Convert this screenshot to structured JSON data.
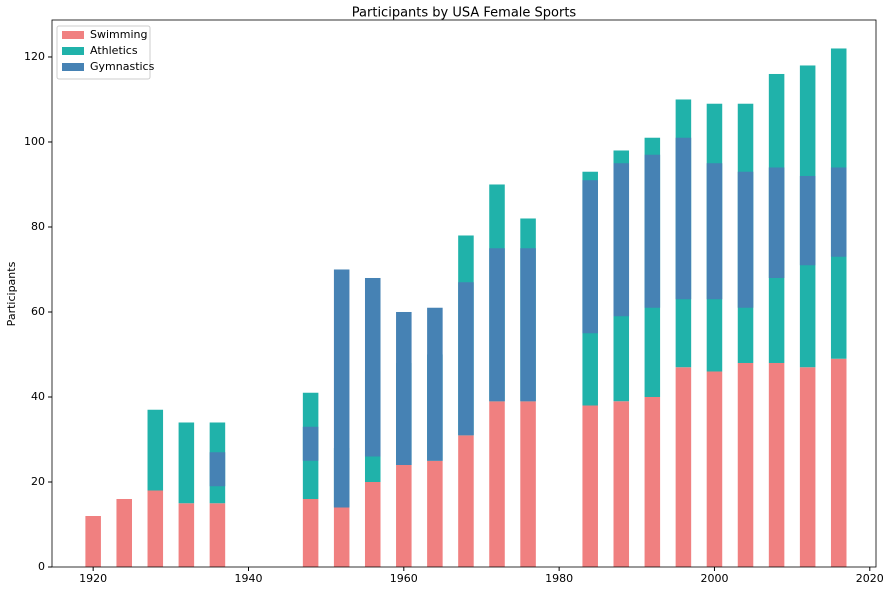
{
  "chart_data": {
    "type": "bar",
    "title": "Participants by USA Female Sports",
    "y_label": "Participants",
    "x": [
      1920,
      1924,
      1928,
      1932,
      1936,
      1948,
      1952,
      1956,
      1960,
      1964,
      1968,
      1972,
      1976,
      1984,
      1988,
      1992,
      1996,
      2000,
      2004,
      2008,
      2012,
      2016
    ],
    "series": [
      {
        "name": "Swimming",
        "color": "#f08080",
        "values": [
          12,
          16,
          18,
          15,
          15,
          16,
          14,
          20,
          24,
          25,
          31,
          39,
          39,
          38,
          39,
          40,
          47,
          46,
          48,
          48,
          47,
          49
        ]
      },
      {
        "name": "Athletics",
        "color": "#20b2aa",
        "stack_on": 0,
        "values": [
          null,
          null,
          19,
          19,
          19,
          25,
          14,
          26,
          24,
          25,
          47,
          51,
          43,
          55,
          59,
          61,
          63,
          63,
          61,
          68,
          71,
          73
        ]
      },
      {
        "name": "Gymnastics",
        "color": "#4682b4",
        "values": [
          null,
          null,
          null,
          null,
          8,
          8,
          56,
          42,
          36,
          36,
          36,
          36,
          36,
          36,
          36,
          36,
          38,
          32,
          32,
          26,
          21,
          21
        ],
        "bottom": [
          null,
          null,
          null,
          null,
          19,
          25,
          14,
          26,
          24,
          25,
          31,
          39,
          39,
          55,
          59,
          61,
          63,
          63,
          61,
          68,
          71,
          73
        ]
      }
    ],
    "bar_width": 2,
    "xlim": [
      1914.7,
      2020.8
    ],
    "xticks": [
      1920,
      1940,
      1960,
      1980,
      2000,
      2020
    ],
    "ylim": [
      0,
      128.7
    ],
    "yticks": [
      0,
      20,
      40,
      60,
      80,
      100,
      120
    ],
    "legend": "upper left"
  }
}
